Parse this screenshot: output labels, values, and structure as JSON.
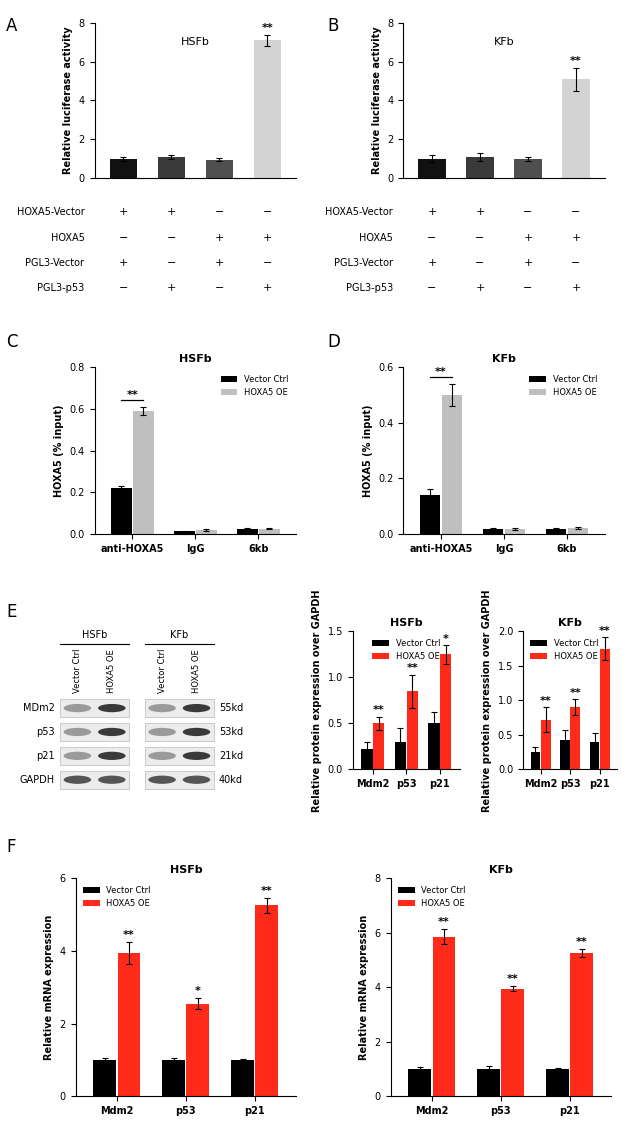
{
  "chart_data": [
    {
      "type": "bar",
      "panel": "A",
      "title": "HSFb",
      "y_label": "Relative luciferase activity",
      "categories": [
        null,
        null,
        null,
        null
      ],
      "tick_labels": "y",
      "series": [
        {
          "name": "HSFb",
          "colors": [
            "#111111",
            "#3a3a3a",
            "#4f4f4f",
            "#d3d3d3"
          ],
          "values": [
            1.0,
            1.1,
            0.95,
            7.1
          ],
          "errors": [
            0.1,
            0.1,
            0.1,
            0.3
          ],
          "significance": [
            null,
            null,
            null,
            "**"
          ]
        }
      ],
      "ylim": [
        0,
        8
      ],
      "yticks": [
        0,
        2,
        4,
        6,
        8
      ],
      "conditions": [
        {
          "label": "HOXA5-Vector",
          "values": [
            "+",
            "+",
            "−",
            "−"
          ]
        },
        {
          "label": "HOXA5",
          "values": [
            "−",
            "−",
            "+",
            "+"
          ]
        },
        {
          "label": "PGL3-Vector",
          "values": [
            "+",
            "−",
            "+",
            "−"
          ]
        },
        {
          "label": "PGL3-p53",
          "values": [
            "−",
            "+",
            "−",
            "+"
          ]
        }
      ]
    },
    {
      "type": "bar",
      "panel": "B",
      "title": "KFb",
      "y_label": "Relative luciferase activity",
      "categories": [
        null,
        null,
        null,
        null
      ],
      "tick_labels": "y",
      "series": [
        {
          "name": "KFb",
          "colors": [
            "#111111",
            "#3a3a3a",
            "#4f4f4f",
            "#d3d3d3"
          ],
          "values": [
            1.0,
            1.1,
            1.0,
            5.1
          ],
          "errors": [
            0.2,
            0.2,
            0.1,
            0.6
          ],
          "significance": [
            null,
            null,
            null,
            "**"
          ]
        }
      ],
      "ylim": [
        0,
        8
      ],
      "yticks": [
        0,
        2,
        4,
        6,
        8
      ],
      "conditions": [
        {
          "label": "HOXA5-Vector",
          "values": [
            "+",
            "+",
            "−",
            "−"
          ]
        },
        {
          "label": "HOXA5",
          "values": [
            "−",
            "−",
            "+",
            "+"
          ]
        },
        {
          "label": "PGL3-Vector",
          "values": [
            "+",
            "−",
            "+",
            "−"
          ]
        },
        {
          "label": "PGL3-p53",
          "values": [
            "−",
            "+",
            "−",
            "+"
          ]
        }
      ]
    },
    {
      "type": "bar",
      "panel": "C",
      "title": "HSFb",
      "y_label": "HOXA5 (% input)",
      "categories": [
        "anti-HOXA5",
        "IgG",
        "6kb"
      ],
      "legend": "upper right",
      "series": [
        {
          "name": "Vector Ctrl",
          "color": "#000000",
          "values": [
            0.22,
            0.012,
            0.025
          ],
          "errors": [
            0.01,
            0.002,
            0.003
          ]
        },
        {
          "name": "HOXA5 OE",
          "color": "#bfbfbf",
          "values": [
            0.59,
            0.018,
            0.025
          ],
          "errors": [
            0.02,
            0.004,
            0.004
          ]
        }
      ],
      "significance": [
        "**",
        null,
        null
      ],
      "ylim": [
        0,
        0.8
      ],
      "yticks": [
        {
          "value": 0,
          "label": "0.0"
        },
        0.2,
        0.4,
        0.6,
        0.8
      ]
    },
    {
      "type": "bar",
      "panel": "D",
      "title": "KFb",
      "y_label": "HOXA5 (% input)",
      "categories": [
        "anti-HOXA5",
        "IgG",
        "6kb"
      ],
      "legend": "upper right",
      "series": [
        {
          "name": "Vector Ctrl",
          "color": "#000000",
          "values": [
            0.14,
            0.018,
            0.018
          ],
          "errors": [
            0.02,
            0.003,
            0.003
          ]
        },
        {
          "name": "HOXA5 OE",
          "color": "#bfbfbf",
          "values": [
            0.5,
            0.018,
            0.022
          ],
          "errors": [
            0.04,
            0.003,
            0.004
          ]
        }
      ],
      "significance": [
        "**",
        null,
        null
      ],
      "ylim": [
        0,
        0.6
      ],
      "yticks": [
        {
          "value": 0,
          "label": "0.0"
        },
        0.2,
        0.4,
        0.6
      ]
    },
    {
      "type": "bar",
      "title": "HSFb",
      "y_label": "Relative protein expression over GAPDH",
      "categories": [
        "Mdm2",
        "p53",
        "p21"
      ],
      "legend": "upper center",
      "series": [
        {
          "name": "Vector Ctrl",
          "color": "#000000",
          "values": [
            0.22,
            0.3,
            0.5
          ],
          "errors": [
            0.08,
            0.15,
            0.12
          ]
        },
        {
          "name": "HOXA5 OE",
          "color": "#ff2a1a",
          "values": [
            0.5,
            0.85,
            1.25
          ],
          "errors": [
            0.07,
            0.18,
            0.1
          ],
          "significance": [
            "**",
            "**",
            "*"
          ]
        }
      ],
      "ylim": [
        0,
        1.5
      ],
      "yticks": [
        {
          "value": 0,
          "label": "0.0"
        },
        0.5,
        1.0,
        1.5
      ]
    },
    {
      "type": "bar",
      "title": "KFb",
      "y_label": "Relative protein expression over GAPDH",
      "categories": [
        "Mdm2",
        "p53",
        "p21"
      ],
      "legend": "upper left",
      "series": [
        {
          "name": "Vector Ctrl",
          "color": "#000000",
          "values": [
            0.25,
            0.42,
            0.4
          ],
          "errors": [
            0.07,
            0.15,
            0.12
          ]
        },
        {
          "name": "HOXA5 OE",
          "color": "#ff2a1a",
          "values": [
            0.72,
            0.9,
            1.75
          ],
          "errors": [
            0.18,
            0.12,
            0.17
          ],
          "significance": [
            "**",
            "**",
            "**"
          ]
        }
      ],
      "ylim": [
        0,
        2.0
      ],
      "yticks": [
        {
          "value": 0,
          "label": "0.0"
        },
        0.5,
        1.0,
        1.5,
        2.0
      ]
    },
    {
      "type": "bar",
      "panel": "F",
      "title": "HSFb",
      "y_label": "Relative mRNA expression",
      "categories": [
        "Mdm2",
        "p53",
        "p21"
      ],
      "legend": "upper left",
      "series": [
        {
          "name": "Vector Ctrl",
          "color": "#000000",
          "values": [
            1.0,
            1.0,
            1.0
          ],
          "errors": [
            0.06,
            0.05,
            0.04
          ]
        },
        {
          "name": "HOXA5 OE",
          "color": "#ff2a1a",
          "values": [
            3.95,
            2.55,
            5.25
          ],
          "errors": [
            0.3,
            0.15,
            0.2
          ],
          "significance": [
            "**",
            "*",
            "**"
          ]
        }
      ],
      "ylim": [
        0,
        6
      ],
      "yticks": [
        0,
        2,
        4,
        6
      ]
    },
    {
      "type": "bar",
      "title": "KFb",
      "y_label": "Relative mRNA expression",
      "categories": [
        "Mdm2",
        "p53",
        "p21"
      ],
      "legend": "upper left",
      "series": [
        {
          "name": "Vector Ctrl",
          "color": "#000000",
          "values": [
            1.0,
            1.0,
            1.0
          ],
          "errors": [
            0.08,
            0.1,
            0.05
          ]
        },
        {
          "name": "HOXA5 OE",
          "color": "#ff2a1a",
          "values": [
            5.85,
            3.95,
            5.25
          ],
          "errors": [
            0.28,
            0.1,
            0.15
          ],
          "significance": [
            "**",
            "**",
            "**"
          ]
        }
      ],
      "ylim": [
        0,
        8
      ],
      "yticks": [
        0,
        2,
        4,
        6,
        8
      ]
    }
  ],
  "blot": {
    "panel": "E",
    "groups": [
      {
        "name": "HSFb",
        "lanes": [
          "Vector Ctrl",
          "HOXA5 OE"
        ]
      },
      {
        "name": "KFb",
        "lanes": [
          "Vector Ctrl",
          "HOXA5 OE"
        ]
      }
    ],
    "rows": [
      {
        "protein": "MDm2",
        "size": "55kd"
      },
      {
        "protein": "p53",
        "size": "53kd"
      },
      {
        "protein": "p21",
        "size": "21kd"
      },
      {
        "protein": "GAPDH",
        "size": "40kd"
      }
    ]
  }
}
